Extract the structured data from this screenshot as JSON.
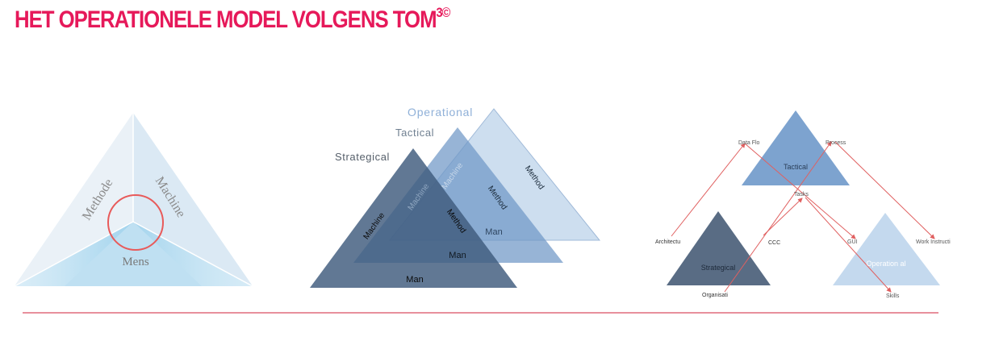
{
  "title": {
    "main": "HET OPERATIONELE MODEL VOLGENS TOM",
    "sup": "3©"
  },
  "colors": {
    "title": "#e6195a",
    "divider": "#d0203a",
    "arrow": "#e06060"
  },
  "diagram1": {
    "methode": "Methode",
    "machine": "Machine",
    "mens": "Mens"
  },
  "diagram2": {
    "operational": "Operational",
    "tactical": "Tactical",
    "strategical": "Strategical",
    "op_method": "Method",
    "tac_machine": "Machine",
    "tac_method": "Method",
    "tac_man": "Man",
    "str_machine": "Machine",
    "str_machine2": "Machine",
    "str_method": "Method",
    "str_man": "Man",
    "mid_man": "Man"
  },
  "diagram3": {
    "tactical": "Tactical",
    "strategical": "Strategical",
    "operational": "Operation al",
    "data_flow": "Data Flo",
    "process": "Process",
    "tasks": "Tasks",
    "architecture": "Architectu",
    "ccc": "CCC",
    "gui": "GUI",
    "work_instructions": "Work Instructi",
    "organisation": "Organisati",
    "skills": "Skills"
  }
}
